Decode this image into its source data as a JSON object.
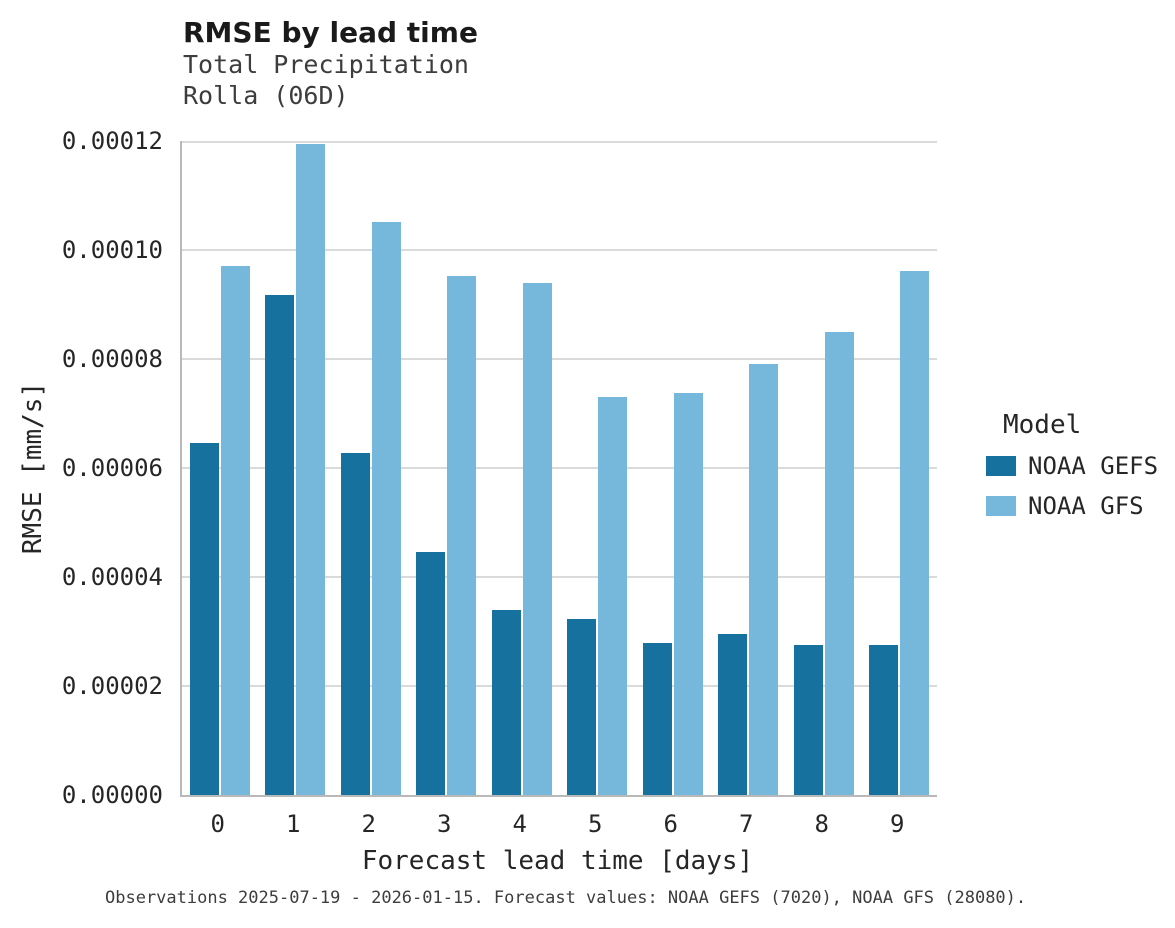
{
  "chart_data": {
    "type": "bar",
    "title": "RMSE by lead time",
    "subtitle_line1": "Total Precipitation",
    "subtitle_line2": "Rolla (06D)",
    "xlabel": "Forecast lead time [days]",
    "ylabel": "RMSE [mm/s]",
    "categories": [
      "0",
      "1",
      "2",
      "3",
      "4",
      "5",
      "6",
      "7",
      "8",
      "9"
    ],
    "series": [
      {
        "name": "NOAA GEFS",
        "color": "#17719f",
        "values": [
          6.45e-05,
          9.18e-05,
          6.27e-05,
          4.45e-05,
          3.4e-05,
          3.23e-05,
          2.79e-05,
          2.95e-05,
          2.76e-05,
          2.76e-05
        ]
      },
      {
        "name": "NOAA GFS",
        "color": "#76b7dc",
        "values": [
          9.7e-05,
          0.0001195,
          0.0001051,
          9.53e-05,
          9.4e-05,
          7.31e-05,
          7.37e-05,
          7.9e-05,
          8.5e-05,
          9.62e-05
        ]
      }
    ],
    "ylim": [
      0,
      0.00012
    ],
    "yticks": [
      0,
      2e-05,
      4e-05,
      6e-05,
      8e-05,
      0.0001,
      0.00012
    ],
    "ytick_labels": [
      "0.00000",
      "0.00002",
      "0.00004",
      "0.00006",
      "0.00008",
      "0.00010",
      "0.00012"
    ],
    "grid": "horizontal-only",
    "legend": {
      "title": "Model",
      "position": "right"
    },
    "caption": "Observations 2025-07-19 - 2026-01-15. Forecast values: NOAA GEFS (7020), NOAA GFS (28080)."
  }
}
